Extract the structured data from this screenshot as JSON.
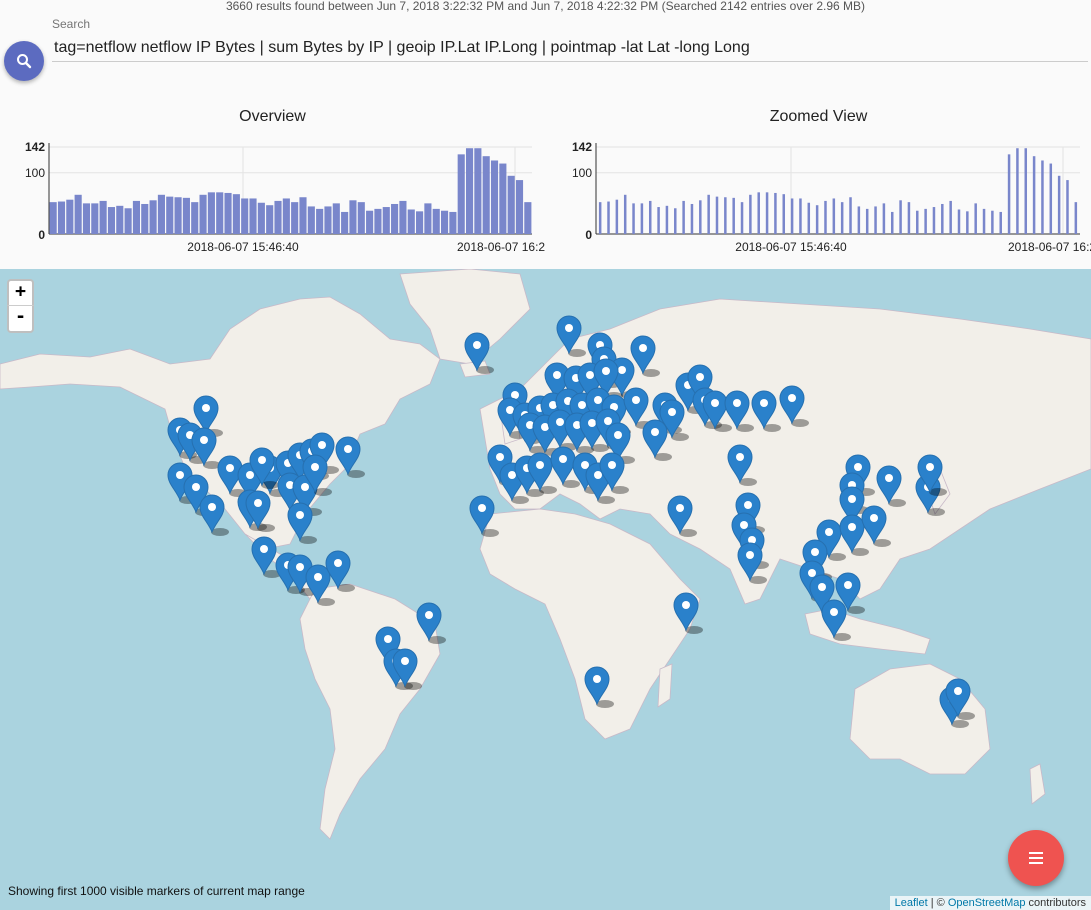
{
  "status": "3660 results found between Jun 7, 2018 3:22:32 PM and Jun 7, 2018 4:22:32 PM (Searched 2142 entries over 2.96 MB)",
  "search": {
    "label": "Search",
    "query": "tag=netflow netflow IP Bytes | sum Bytes by IP | geoip IP.Lat IP.Long | pointmap -lat Lat -long Long"
  },
  "charts": {
    "overview": {
      "title": "Overview",
      "y_ticks": [
        "0",
        "100",
        "142"
      ],
      "x_ticks": [
        "2018-06-07 15:46:40",
        "2018-06-07 16:2"
      ]
    },
    "zoomed": {
      "title": "Zoomed View",
      "y_ticks": [
        "0",
        "100",
        "142"
      ],
      "x_ticks": [
        "2018-06-07 15:46:40",
        "2018-06-07 16:2"
      ]
    }
  },
  "chart_data": [
    {
      "type": "bar",
      "title": "Overview",
      "ylim": [
        0,
        142
      ],
      "values": [
        52,
        53,
        56,
        64,
        50,
        50,
        54,
        44,
        46,
        42,
        54,
        49,
        55,
        64,
        61,
        60,
        59,
        52,
        64,
        68,
        68,
        67,
        65,
        58,
        58,
        51,
        47,
        54,
        58,
        52,
        60,
        45,
        41,
        45,
        50,
        36,
        55,
        52,
        38,
        41,
        44,
        49,
        54,
        40,
        37,
        50,
        41,
        38,
        36,
        130,
        140,
        140,
        127,
        120,
        115,
        95,
        88,
        52
      ],
      "color": "#7986cb"
    },
    {
      "type": "bar",
      "title": "Zoomed View",
      "ylim": [
        0,
        142
      ],
      "values": [
        52,
        53,
        56,
        64,
        50,
        50,
        54,
        44,
        46,
        42,
        54,
        49,
        55,
        64,
        61,
        60,
        59,
        52,
        64,
        68,
        68,
        67,
        65,
        58,
        58,
        51,
        47,
        54,
        58,
        52,
        60,
        45,
        41,
        45,
        50,
        36,
        55,
        52,
        38,
        41,
        44,
        49,
        54,
        40,
        37,
        50,
        41,
        38,
        36,
        130,
        140,
        140,
        127,
        120,
        115,
        95,
        88,
        52
      ],
      "color": "#7986cb"
    }
  ],
  "map": {
    "zoom_in": "+",
    "zoom_out": "-",
    "note": "Showing first 1000 visible markers of current map range",
    "attribution_leaflet": "Leaflet",
    "attribution_sep": " | © ",
    "attribution_osm": "OpenStreetMap",
    "attribution_tail": " contributors",
    "water_color": "#aad3df",
    "land_color": "#f2efe9",
    "marker_color": "#2a81cb"
  },
  "icons": {
    "search": "search-icon",
    "menu": "menu-icon",
    "marker": "map-marker-icon"
  }
}
